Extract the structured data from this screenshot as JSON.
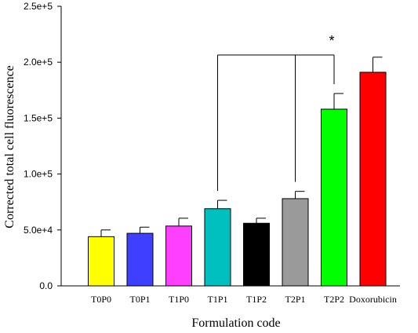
{
  "chart_data": {
    "type": "bar",
    "title": "",
    "xlabel": "Formulation code",
    "ylabel": "Corrected total cell fluorescence",
    "ylim": [
      0,
      250000
    ],
    "yticks": [
      {
        "value": 0,
        "label": "0.0"
      },
      {
        "value": 50000,
        "label": "5.0e+4"
      },
      {
        "value": 100000,
        "label": "1.0e+5"
      },
      {
        "value": 150000,
        "label": "1.5e+5"
      },
      {
        "value": 200000,
        "label": "2.0e+5"
      },
      {
        "value": 250000,
        "label": "2.5e+5"
      }
    ],
    "grid": false,
    "legend": "none",
    "categories": [
      "T0P0",
      "T0P1",
      "T1P0",
      "T1P1",
      "T1P2",
      "T2P1",
      "T2P2",
      "Doxorubicin"
    ],
    "values": [
      44000,
      47000,
      53500,
      69000,
      56000,
      78000,
      158000,
      191000
    ],
    "errors": [
      6000,
      5500,
      7000,
      7500,
      4500,
      6500,
      14000,
      13500
    ],
    "colors": [
      "#ffff00",
      "#3f3fff",
      "#ff3fff",
      "#00bfbf",
      "#000000",
      "#9a9a9a",
      "#00ff00",
      "#ff0000"
    ],
    "significance": {
      "label": "*",
      "bracket_from": [
        "T1P1",
        "T2P1"
      ],
      "bracket_to": "T2P2"
    }
  }
}
